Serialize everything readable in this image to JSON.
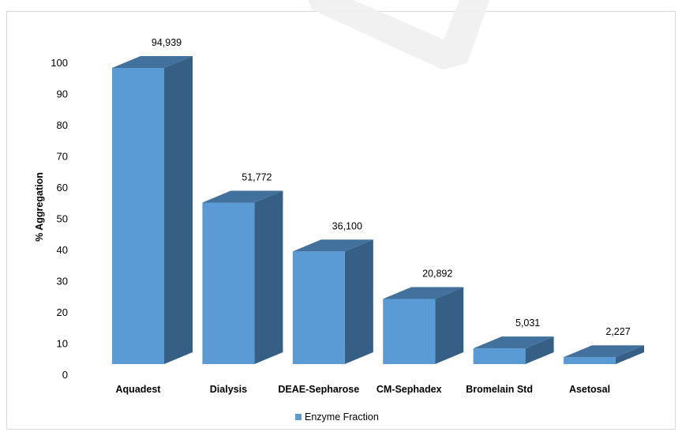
{
  "chart_data": {
    "type": "bar",
    "categories": [
      "Aquadest",
      "Dialysis",
      "DEAE-Sepharose",
      "CM-Sephadex",
      "Bromelain Std",
      "Asetosal"
    ],
    "series": [
      {
        "name": "Enzyme Fraction",
        "values": [
          94.939,
          51.772,
          36.1,
          20.892,
          5.031,
          2.227
        ],
        "data_labels": [
          "94,939",
          "51,772",
          "36,100",
          "20,892",
          "5,031",
          "2,227"
        ],
        "color": "#5b9bd5"
      }
    ],
    "ylabel": "% Aggregation",
    "xlabel": "",
    "title": "",
    "ylim": [
      0,
      100
    ],
    "yticks": [
      0,
      10,
      20,
      30,
      40,
      50,
      60,
      70,
      80,
      90,
      100
    ],
    "legend_position": "bottom",
    "grid": false,
    "three_d": true,
    "colors": {
      "front": "#5b9bd5",
      "top": "#41719c",
      "side": "#365f85"
    }
  }
}
